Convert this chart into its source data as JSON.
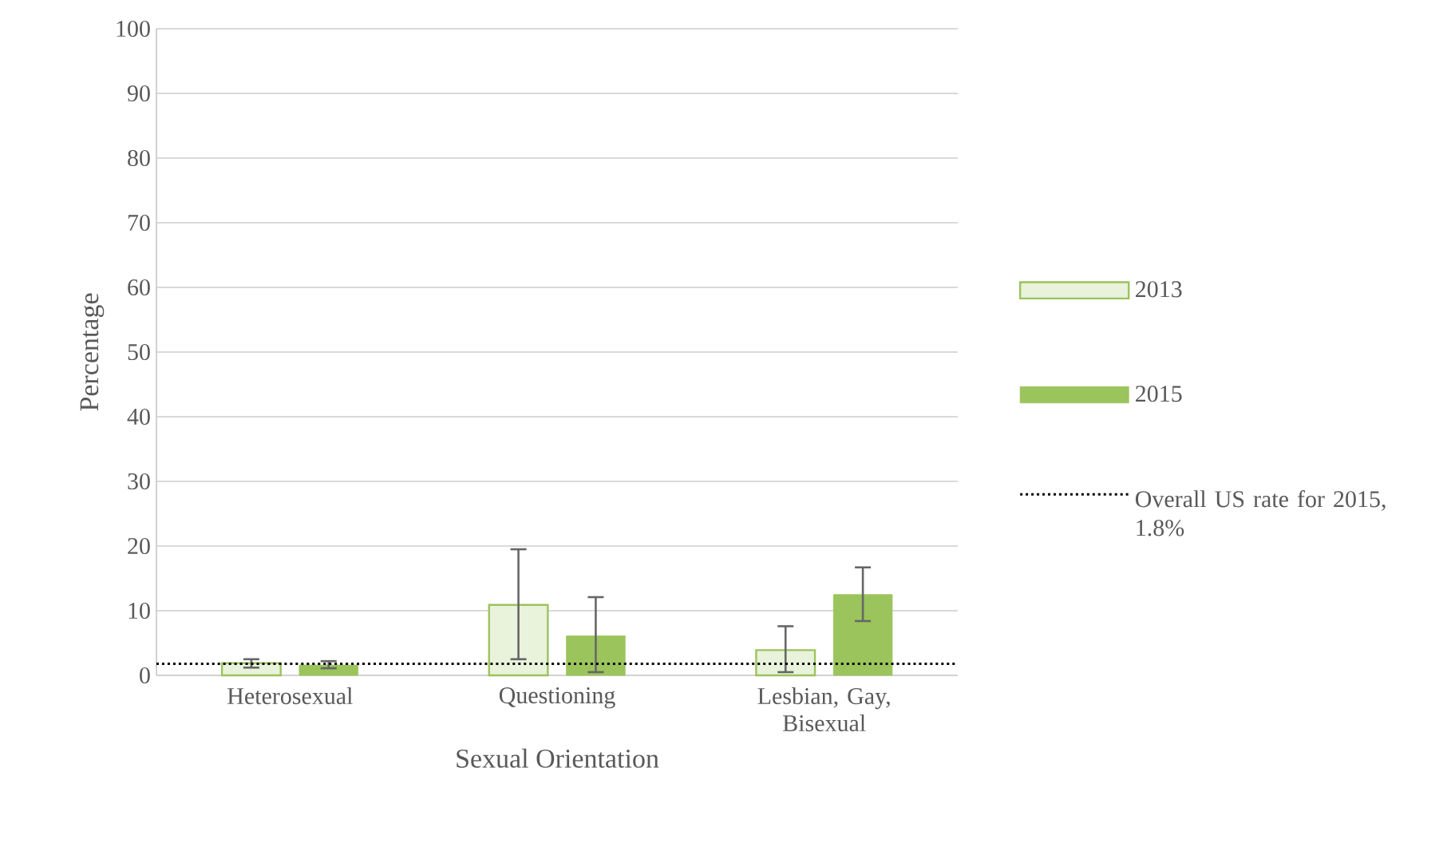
{
  "chart_data": {
    "type": "bar",
    "xlabel": "Sexual Orientation",
    "ylabel": "Percentage",
    "categories": [
      "Heterosexual",
      "Questioning",
      "Lesbian, Gay, Bisexual"
    ],
    "series": [
      {
        "name": "2013",
        "color": "#9bc45c",
        "values": [
          1.9,
          10.9,
          3.9
        ],
        "errors": [
          [
            1.2,
            2.5
          ],
          [
            2.5,
            19.5
          ],
          [
            0.5,
            7.6
          ]
        ]
      },
      {
        "name": "2015",
        "color": "#9bc45c",
        "values": [
          1.6,
          6.1,
          12.5
        ],
        "errors": [
          [
            1.1,
            2.2
          ],
          [
            0.5,
            12.1
          ],
          [
            8.4,
            16.7
          ]
        ]
      }
    ],
    "ylim": [
      0,
      100
    ],
    "yticks": [
      0,
      10,
      20,
      30,
      40,
      50,
      60,
      70,
      80,
      90,
      100
    ],
    "grid": "y",
    "legend": "right",
    "ref_lines": [
      {
        "axis": "y",
        "value": 1.8,
        "label": "Overall US rate for 2015, 1.8%",
        "color": "#000000",
        "line_style": "dotted"
      }
    ]
  }
}
